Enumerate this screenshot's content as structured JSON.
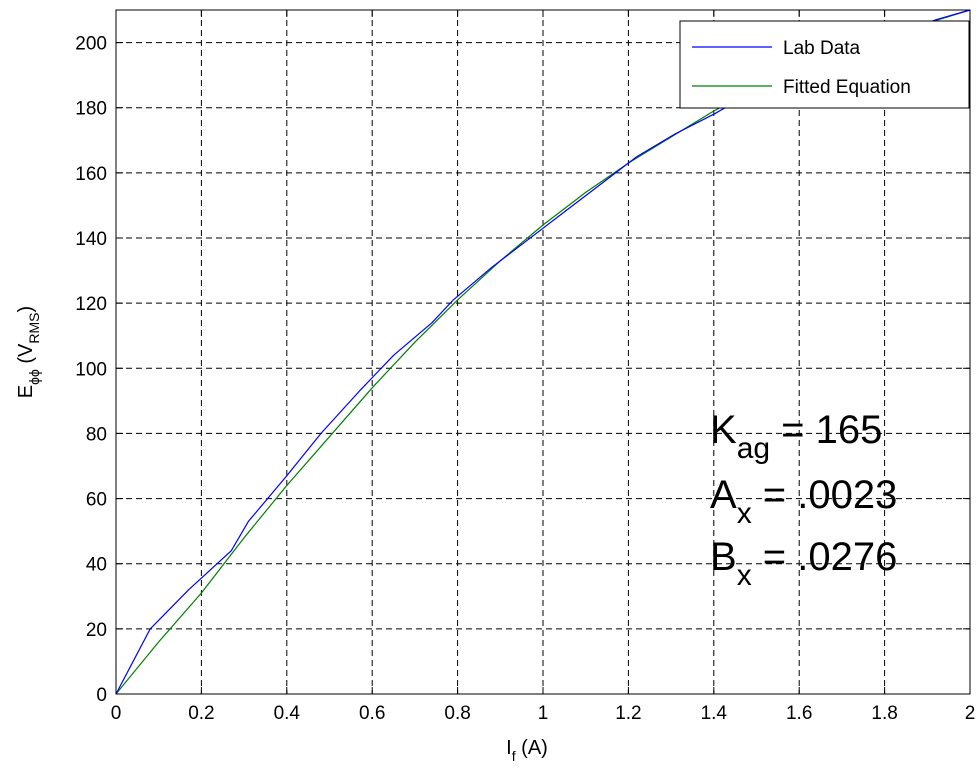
{
  "chart_data": {
    "type": "line",
    "xlabel": {
      "main": "I",
      "sub": "f",
      "rest": " (A)"
    },
    "ylabel": {
      "main": "E",
      "sub": "ϕϕ",
      "open": " (V",
      "sub2": "RMS",
      "close": ")"
    },
    "xlim": [
      0,
      2
    ],
    "ylim": [
      0,
      210
    ],
    "xticks": [
      0,
      0.2,
      0.4,
      0.6,
      0.8,
      1,
      1.2,
      1.4,
      1.6,
      1.8,
      2
    ],
    "xtick_labels": [
      "0",
      "0.2",
      "0.4",
      "0.6",
      "0.8",
      "1",
      "1.2",
      "1.4",
      "1.6",
      "1.8",
      "2"
    ],
    "yticks": [
      0,
      20,
      40,
      60,
      80,
      100,
      120,
      140,
      160,
      180,
      200
    ],
    "ytick_labels": [
      "0",
      "20",
      "40",
      "60",
      "80",
      "100",
      "120",
      "140",
      "160",
      "180",
      "200"
    ],
    "grid": true,
    "legend_position": "top-right",
    "series": [
      {
        "name": "Lab Data",
        "color": "#0000ff",
        "x": [
          0,
          0.08,
          0.17,
          0.27,
          0.31,
          0.4,
          0.48,
          0.57,
          0.65,
          0.74,
          0.79,
          0.88,
          0.96,
          1.05,
          1.14,
          1.22,
          1.31,
          1.4,
          1.48,
          1.57,
          1.66,
          1.75,
          1.83,
          1.92,
          2.0
        ],
        "y": [
          0,
          20,
          32,
          44,
          53,
          67,
          80,
          93,
          104,
          114,
          121,
          131,
          139,
          148,
          157,
          165,
          172,
          178,
          184,
          189,
          194,
          199,
          203,
          207,
          210
        ]
      },
      {
        "name": "Fitted Equation",
        "color": "#008000",
        "x": [
          0,
          0.1,
          0.2,
          0.3,
          0.4,
          0.5,
          0.6,
          0.7,
          0.8,
          0.9,
          1.0,
          1.1,
          1.2,
          1.3,
          1.4,
          1.5,
          1.6,
          1.7,
          1.8,
          1.9,
          2.0
        ],
        "y": [
          0,
          16,
          31,
          48,
          64,
          79,
          94,
          108,
          121,
          133,
          144,
          154,
          163,
          171,
          179,
          186,
          192,
          197,
          202,
          206,
          210
        ]
      }
    ],
    "annotations": [
      {
        "main": "K",
        "sub": "ag",
        "rest": " = 165"
      },
      {
        "main": "A",
        "sub": "x",
        "rest": " = .0023"
      },
      {
        "main": "B",
        "sub": "x",
        "rest": " = .0276"
      }
    ]
  }
}
